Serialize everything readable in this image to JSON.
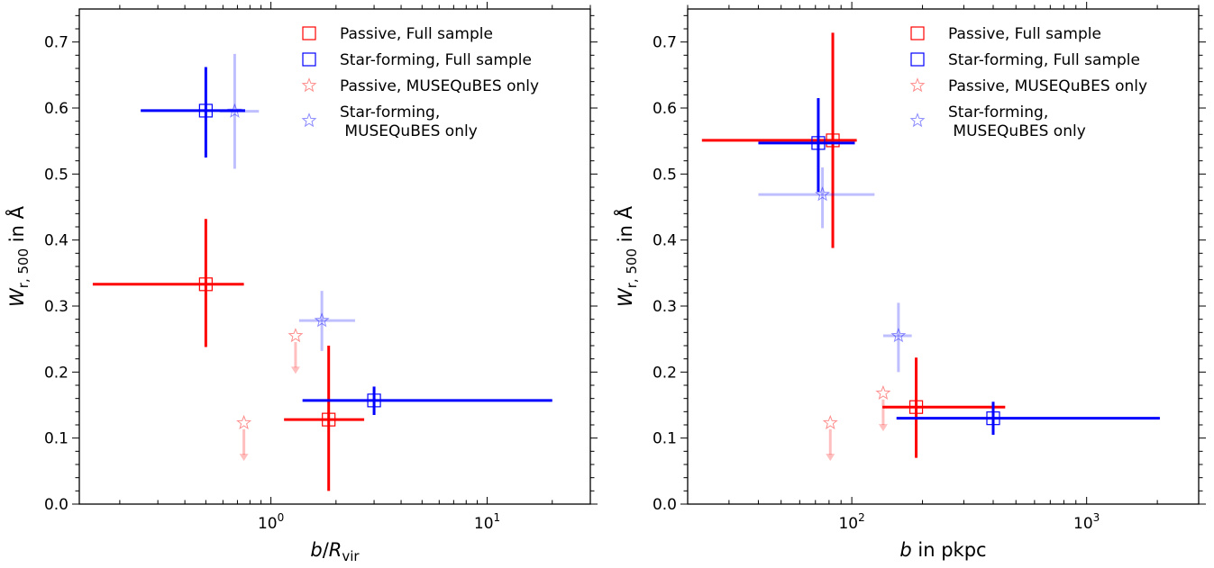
{
  "chart_data": [
    {
      "type": "scatter",
      "xscale": "log",
      "xlim": [
        0.13,
        30
      ],
      "ylim": [
        0.0,
        0.75
      ],
      "xlabel": {
        "italic": "b",
        "sep": "/",
        "sym": "R",
        "sub": "vir"
      },
      "ylabel": {
        "sym": "W",
        "sub": "r, 500",
        "rest": " in Å"
      },
      "xticks_major": [
        {
          "value": 1,
          "base": "10",
          "exp": "0"
        },
        {
          "value": 10,
          "base": "10",
          "exp": "1"
        }
      ],
      "yticks": [
        "0.0",
        "0.1",
        "0.2",
        "0.3",
        "0.4",
        "0.5",
        "0.6",
        "0.7"
      ],
      "legend": {
        "position": "top-right",
        "entries": [
          {
            "label": "Passive, Full sample",
            "marker": "square",
            "color": "#ff0000",
            "faded": false
          },
          {
            "label": "Star-forming, Full sample",
            "marker": "square",
            "color": "#0000ff",
            "faded": false
          },
          {
            "label": "Passive, MUSEQuBES only",
            "marker": "star",
            "color": "#ff0000",
            "faded": true
          },
          {
            "label": "Star-forming,\n MUSEQuBES only",
            "marker": "star",
            "color": "#0000ff",
            "faded": true
          }
        ]
      },
      "series": [
        {
          "name": "Passive, Full sample",
          "marker": "square",
          "color": "#ff0000",
          "alpha": 1,
          "points": [
            {
              "x": 0.5,
              "y": 0.333,
              "xerr": [
                0.15,
                0.75
              ],
              "yerr": [
                0.238,
                0.432
              ]
            },
            {
              "x": 1.85,
              "y": 0.128,
              "xerr": [
                1.15,
                2.7
              ],
              "yerr": [
                0.02,
                0.24
              ]
            }
          ]
        },
        {
          "name": "Star-forming, Full sample",
          "marker": "square",
          "color": "#0000ff",
          "alpha": 1,
          "points": [
            {
              "x": 0.5,
              "y": 0.596,
              "xerr": [
                0.25,
                0.76
              ],
              "yerr": [
                0.525,
                0.662
              ]
            },
            {
              "x": 3.0,
              "y": 0.157,
              "xerr": [
                1.4,
                20.0
              ],
              "yerr": [
                0.135,
                0.178
              ]
            }
          ]
        },
        {
          "name": "Passive, MUSEQuBES only",
          "marker": "star",
          "color": "#ff0000",
          "alpha": 0.25,
          "points": [
            {
              "x": 1.3,
              "y": 0.255,
              "upper_limit": true
            },
            {
              "x": 0.75,
              "y": 0.123,
              "upper_limit": true
            }
          ]
        },
        {
          "name": "Star-forming, MUSEQuBES only",
          "marker": "star",
          "color": "#0000ff",
          "alpha": 0.25,
          "points": [
            {
              "x": 0.68,
              "y": 0.595,
              "xerr": [
                0.58,
                0.88
              ],
              "yerr": [
                0.508,
                0.682
              ]
            },
            {
              "x": 1.72,
              "y": 0.278,
              "xerr": [
                1.35,
                2.45
              ],
              "yerr": [
                0.232,
                0.323
              ]
            }
          ]
        }
      ]
    },
    {
      "type": "scatter",
      "xscale": "log",
      "xlim": [
        20,
        3000
      ],
      "ylim": [
        0.0,
        0.75
      ],
      "xlabel": {
        "italic": "b",
        "rest": " in pkpc"
      },
      "ylabel": {
        "sym": "W",
        "sub": "r, 500",
        "rest": " in Å"
      },
      "xticks_major": [
        {
          "value": 100,
          "base": "10",
          "exp": "2"
        },
        {
          "value": 1000,
          "base": "10",
          "exp": "3"
        }
      ],
      "yticks": [
        "0.0",
        "0.1",
        "0.2",
        "0.3",
        "0.4",
        "0.5",
        "0.6",
        "0.7"
      ],
      "legend": {
        "position": "top-right",
        "entries": [
          {
            "label": "Passive, Full sample",
            "marker": "square",
            "color": "#ff0000",
            "faded": false
          },
          {
            "label": "Star-forming, Full sample",
            "marker": "square",
            "color": "#0000ff",
            "faded": false
          },
          {
            "label": "Passive, MUSEQuBES only",
            "marker": "star",
            "color": "#ff0000",
            "faded": true
          },
          {
            "label": "Star-forming,\n MUSEQuBES only",
            "marker": "star",
            "color": "#0000ff",
            "faded": true
          }
        ]
      },
      "series": [
        {
          "name": "Passive, Full sample",
          "marker": "square",
          "color": "#ff0000",
          "alpha": 1,
          "points": [
            {
              "x": 83,
              "y": 0.551,
              "xerr": [
                23,
                105
              ],
              "yerr": [
                0.388,
                0.714
              ]
            },
            {
              "x": 188,
              "y": 0.147,
              "xerr": [
                135,
                450
              ],
              "yerr": [
                0.07,
                0.222
              ]
            }
          ]
        },
        {
          "name": "Star-forming, Full sample",
          "marker": "square",
          "color": "#0000ff",
          "alpha": 1,
          "points": [
            {
              "x": 72,
              "y": 0.547,
              "xerr": [
                40,
                103
              ],
              "yerr": [
                0.473,
                0.615
              ]
            },
            {
              "x": 400,
              "y": 0.13,
              "xerr": [
                155,
                2050
              ],
              "yerr": [
                0.105,
                0.155
              ]
            }
          ]
        },
        {
          "name": "Passive, MUSEQuBES only",
          "marker": "star",
          "color": "#ff0000",
          "alpha": 0.25,
          "points": [
            {
              "x": 136,
              "y": 0.168,
              "upper_limit": true
            },
            {
              "x": 81,
              "y": 0.123,
              "upper_limit": true
            }
          ]
        },
        {
          "name": "Star-forming, MUSEQuBES only",
          "marker": "star",
          "color": "#0000ff",
          "alpha": 0.25,
          "points": [
            {
              "x": 75,
              "y": 0.469,
              "xerr": [
                40,
                125
              ],
              "yerr": [
                0.418,
                0.51
              ]
            },
            {
              "x": 158,
              "y": 0.255,
              "xerr": [
                136,
                180
              ],
              "yerr": [
                0.2,
                0.305
              ]
            }
          ]
        }
      ]
    }
  ]
}
